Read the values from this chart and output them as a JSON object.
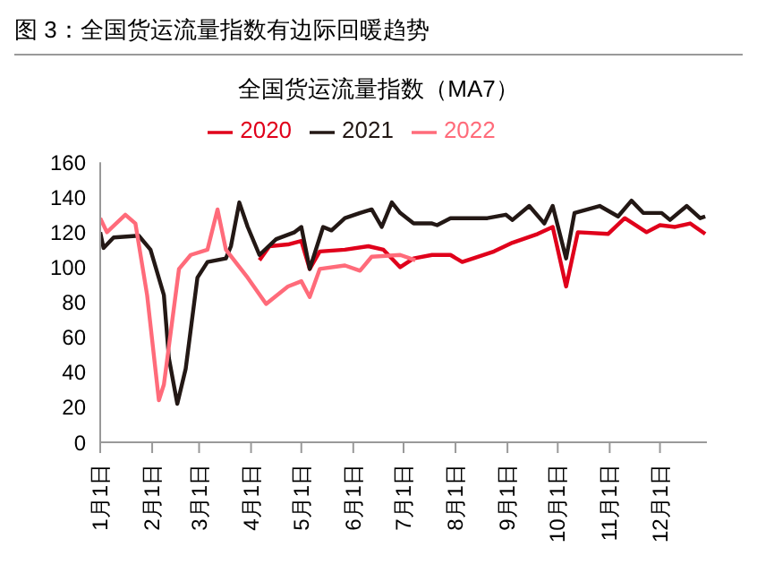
{
  "chart_data": {
    "type": "line",
    "title": "图 3：全国货运流量指数有边际回暖趋势",
    "subtitle": "全国货运流量指数（MA7）",
    "xlim": [
      "--01-01",
      "--12-29"
    ],
    "xticks": [
      {
        "value": "--01-01",
        "label": "1月1日"
      },
      {
        "value": "--02-01",
        "label": "2月1日"
      },
      {
        "value": "--03-01",
        "label": "3月1日"
      },
      {
        "value": "--04-01",
        "label": "4月1日"
      },
      {
        "value": "--05-01",
        "label": "5月1日"
      },
      {
        "value": "--06-01",
        "label": "6月1日"
      },
      {
        "value": "--07-01",
        "label": "7月1日"
      },
      {
        "value": "--08-01",
        "label": "8月1日"
      },
      {
        "value": "--09-01",
        "label": "9月1日"
      },
      {
        "value": "--10-01",
        "label": "10月1日"
      },
      {
        "value": "--11-01",
        "label": "11月1日"
      },
      {
        "value": "--12-01",
        "label": "12月1日"
      }
    ],
    "ylim": [
      0,
      160
    ],
    "yticks": [
      0,
      20,
      40,
      60,
      80,
      100,
      120,
      140,
      160
    ],
    "grid": false,
    "legend": "top",
    "marker": "none",
    "line_style": "solid",
    "series": [
      {
        "name": "2020",
        "color": "#e0001b",
        "x": [
          "--04-06",
          "--04-12",
          "--04-23",
          "--05-01",
          "--05-06",
          "--05-12",
          "--05-27",
          "--06-10",
          "--06-19",
          "--06-29",
          "--07-07",
          "--07-18",
          "--07-29",
          "--08-05",
          "--08-24",
          "--09-04",
          "--09-19",
          "--09-28",
          "--10-06",
          "--10-13",
          "--10-31",
          "--11-10",
          "--11-23",
          "--12-01",
          "--12-10",
          "--12-19",
          "--12-28"
        ],
        "values": [
          104,
          112,
          113,
          115,
          99,
          109,
          110,
          112,
          110,
          100,
          105,
          107,
          107,
          103,
          109,
          114,
          119,
          123,
          89,
          120,
          119,
          128,
          120,
          124,
          123,
          125,
          119
        ]
      },
      {
        "name": "2021",
        "color": "#231815",
        "x": [
          "--01-01",
          "--01-03",
          "--01-09",
          "--01-24",
          "--01-31",
          "--02-08",
          "--02-11",
          "--02-16",
          "--02-21",
          "--02-28",
          "--03-06",
          "--03-17",
          "--03-20",
          "--03-25",
          "--03-30",
          "--04-06",
          "--04-16",
          "--04-27",
          "--05-01",
          "--05-06",
          "--05-14",
          "--05-19",
          "--05-27",
          "--06-05",
          "--06-12",
          "--06-18",
          "--06-24",
          "--06-29",
          "--07-07",
          "--07-18",
          "--07-21",
          "--07-29",
          "--08-20",
          "--08-31",
          "--09-04",
          "--09-14",
          "--09-23",
          "--09-28",
          "--10-06",
          "--10-11",
          "--10-26",
          "--11-06",
          "--11-14",
          "--11-21",
          "--12-02",
          "--12-07",
          "--12-17",
          "--12-25",
          "--12-28"
        ],
        "values": [
          120,
          111,
          117,
          118,
          110,
          84,
          48,
          22,
          42,
          94,
          103,
          105,
          112,
          137,
          123,
          107,
          116,
          120,
          123,
          99,
          123,
          121,
          128,
          131,
          133,
          123,
          137,
          131,
          125,
          125,
          124,
          128,
          128,
          130,
          127,
          135,
          125,
          135,
          105,
          131,
          135,
          129,
          138,
          131,
          131,
          127,
          135,
          128,
          129
        ]
      },
      {
        "name": "2022",
        "color": "#ff6b7a",
        "x": [
          "--01-01",
          "--01-05",
          "--01-16",
          "--01-22",
          "--01-29",
          "--02-05",
          "--02-08",
          "--02-17",
          "--02-24",
          "--03-06",
          "--03-12",
          "--03-17",
          "--03-30",
          "--04-10",
          "--04-23",
          "--05-01",
          "--05-06",
          "--05-12",
          "--05-27",
          "--06-05",
          "--06-12",
          "--06-29",
          "--07-08"
        ],
        "values": [
          128,
          120,
          130,
          125,
          84,
          24,
          33,
          99,
          107,
          110,
          133,
          110,
          94,
          79,
          89,
          92,
          83,
          99,
          101,
          98,
          106,
          107,
          104
        ]
      }
    ]
  }
}
